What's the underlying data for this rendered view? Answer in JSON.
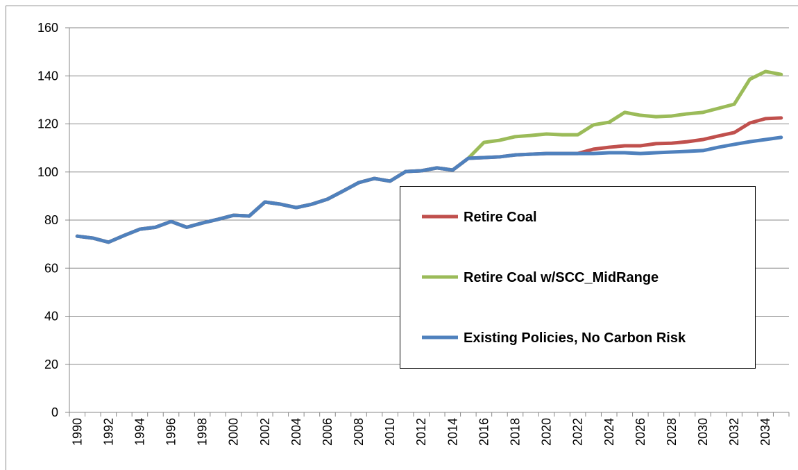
{
  "chart_data": {
    "type": "line",
    "categories": [
      "1990",
      null,
      "1992",
      null,
      "1994",
      null,
      "1996",
      null,
      "1998",
      null,
      "2000",
      null,
      "2002",
      null,
      "2004",
      null,
      "2006",
      null,
      "2008",
      null,
      "2010",
      null,
      "2012",
      null,
      "2014",
      null,
      "2016",
      null,
      "2018",
      null,
      "2020",
      null,
      "2022",
      null,
      "2024",
      null,
      "2026",
      null,
      "2028",
      null,
      "2030",
      null,
      "2032",
      null,
      "2034",
      null
    ],
    "series": [
      {
        "name": "Retire Coal",
        "color": "#c0504d",
        "values": [
          73.3,
          72.5,
          70.8,
          73.6,
          76.2,
          77,
          79.4,
          77,
          78.8,
          80.3,
          82,
          81.7,
          87.5,
          86.6,
          85.2,
          86.6,
          88.7,
          92.1,
          95.6,
          97.3,
          96.2,
          100.2,
          100.5,
          101.7,
          100.8,
          105.7,
          106,
          106.3,
          107.1,
          107.4,
          107.7,
          107.7,
          107.7,
          109.5,
          110.3,
          110.9,
          110.9,
          111.8,
          112,
          112.6,
          113.5,
          115,
          116.4,
          120.4,
          122.2,
          122.5
        ]
      },
      {
        "name": "Retire Coal w/SCC_MidRange",
        "color": "#9bbb59",
        "values": [
          73.3,
          72.5,
          70.8,
          73.6,
          76.2,
          77,
          79.4,
          77,
          78.8,
          80.3,
          82,
          81.7,
          87.5,
          86.6,
          85.2,
          86.6,
          88.7,
          92.1,
          95.6,
          97.3,
          96.2,
          100.2,
          100.5,
          101.7,
          100.8,
          105.7,
          112.3,
          113.2,
          114.7,
          115.2,
          115.8,
          115.5,
          115.5,
          119.6,
          120.7,
          124.8,
          123.6,
          123,
          123.3,
          124.2,
          124.8,
          126.5,
          128.2,
          138.6,
          141.8,
          140.6
        ]
      },
      {
        "name": "Existing Policies, No Carbon Risk",
        "color": "#4f81bd",
        "values": [
          73.3,
          72.5,
          70.8,
          73.6,
          76.2,
          77,
          79.4,
          77,
          78.8,
          80.3,
          82,
          81.7,
          87.5,
          86.6,
          85.2,
          86.6,
          88.7,
          92.1,
          95.6,
          97.3,
          96.2,
          100.2,
          100.5,
          101.7,
          100.8,
          105.7,
          106,
          106.3,
          107.1,
          107.4,
          107.7,
          107.7,
          107.7,
          107.7,
          108,
          108,
          107.7,
          108,
          108.3,
          108.6,
          108.9,
          110.3,
          111.5,
          112.6,
          113.5,
          114.4
        ]
      }
    ],
    "ylim": [
      0,
      160
    ],
    "yticks": [
      0,
      20,
      40,
      60,
      80,
      100,
      120,
      140,
      160
    ],
    "grid": true
  }
}
